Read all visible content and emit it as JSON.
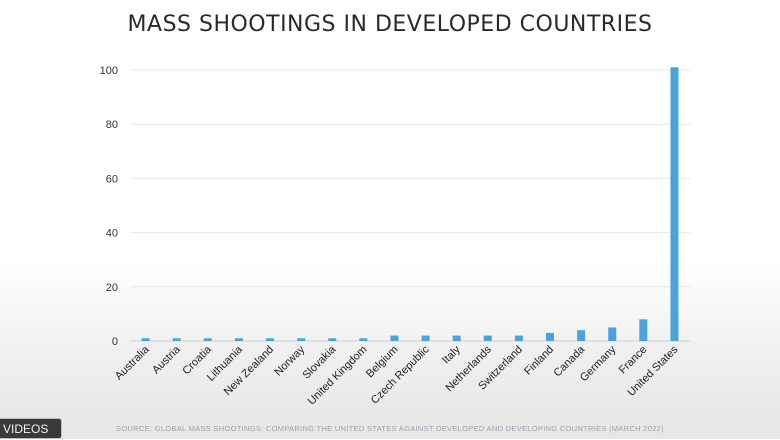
{
  "overlay": {
    "videos_label": "VIDEOS"
  },
  "colors": {
    "bar": "#4aa3dc",
    "grid": "#e8e8e8",
    "axis": "#cfcfcf",
    "text": "#2a2a2a"
  },
  "chart_data": {
    "type": "bar",
    "title": "MASS SHOOTINGS IN DEVELOPED COUNTRIES",
    "source": "SOURCE: GLOBAL MASS SHOOTINGS: COMPARING THE UNITED STATES AGAINST DEVELOPED AND DEVELOPING COUNTRIES (MARCH 2022)",
    "categories": [
      "Australia",
      "Austria",
      "Croatia",
      "Lithuania",
      "New Zealand",
      "Norway",
      "Slovakia",
      "United Kingdom",
      "Belgium",
      "Czech Republic",
      "Italy",
      "Netherlands",
      "Switzerland",
      "Finland",
      "Canada",
      "Germany",
      "France",
      "United States"
    ],
    "values": [
      1,
      1,
      1,
      1,
      1,
      1,
      1,
      1,
      2,
      2,
      2,
      2,
      2,
      3,
      4,
      5,
      8,
      101
    ],
    "ylim": [
      0,
      100
    ],
    "yticks": [
      0,
      20,
      40,
      60,
      80,
      100
    ],
    "grid": true,
    "xlabel": "",
    "ylabel": ""
  }
}
